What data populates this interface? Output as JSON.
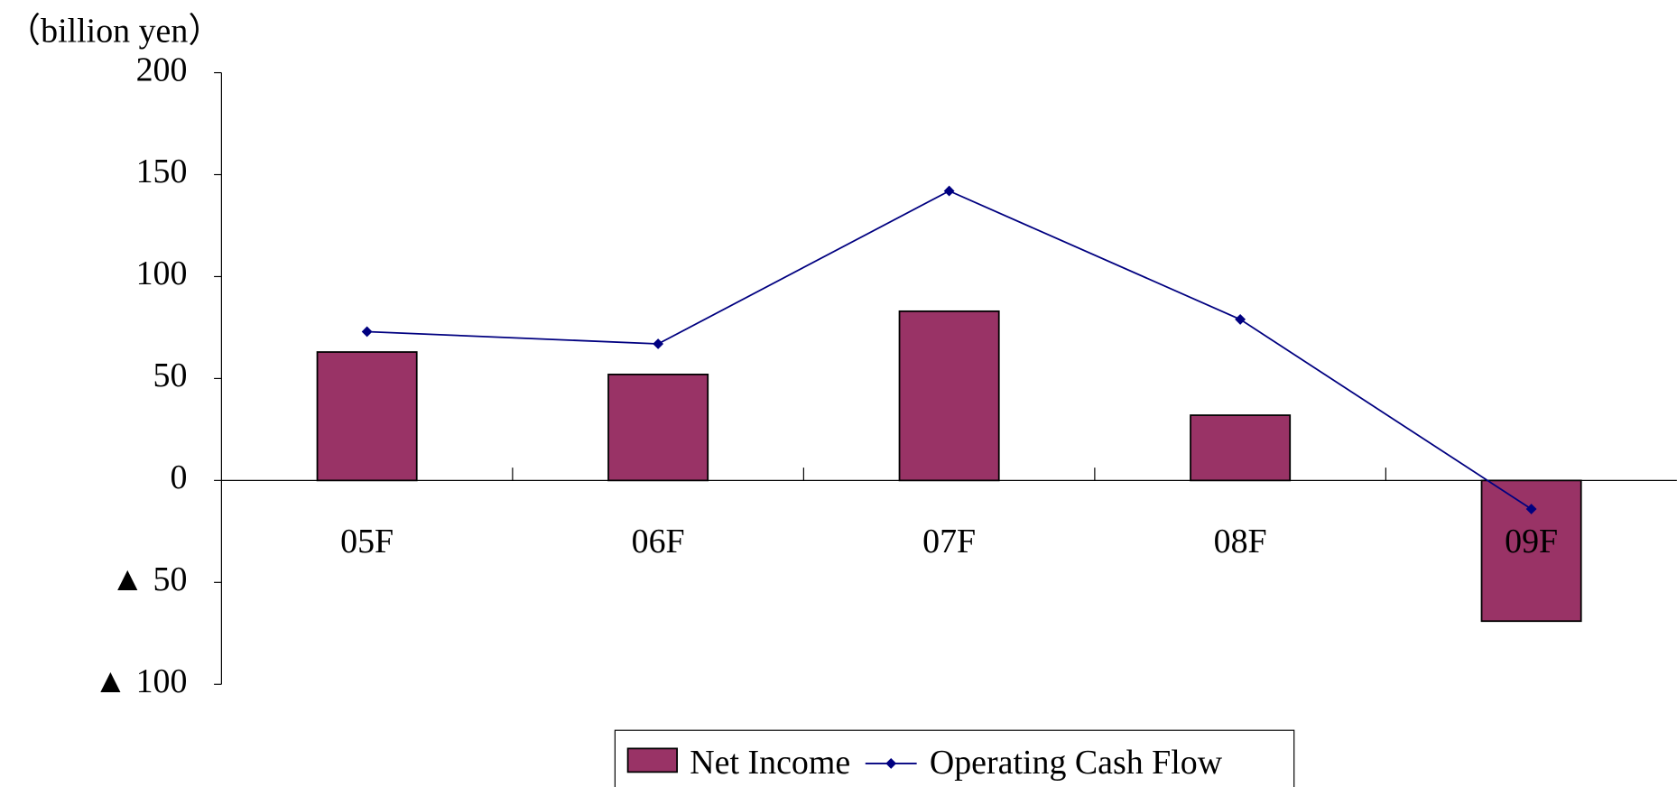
{
  "chart_data": {
    "type": "bar_line",
    "y_axis_label": "（billion yen）",
    "categories": [
      "05F",
      "06F",
      "07F",
      "08F",
      "09F"
    ],
    "series": [
      {
        "name": "Net Income",
        "type": "bar",
        "color": "#993366",
        "values": [
          63,
          52,
          83,
          32,
          -69
        ]
      },
      {
        "name": "Operating Cash Flow",
        "type": "line",
        "color": "#000080",
        "values": [
          73,
          67,
          142,
          79,
          -14
        ]
      }
    ],
    "ylim": [
      -100,
      200
    ],
    "yticks": [
      {
        "value": -100,
        "label": "▲ 100"
      },
      {
        "value": -50,
        "label": "▲ 50"
      },
      0,
      50,
      100,
      150,
      200
    ],
    "grid": false,
    "legend": "bottom"
  }
}
